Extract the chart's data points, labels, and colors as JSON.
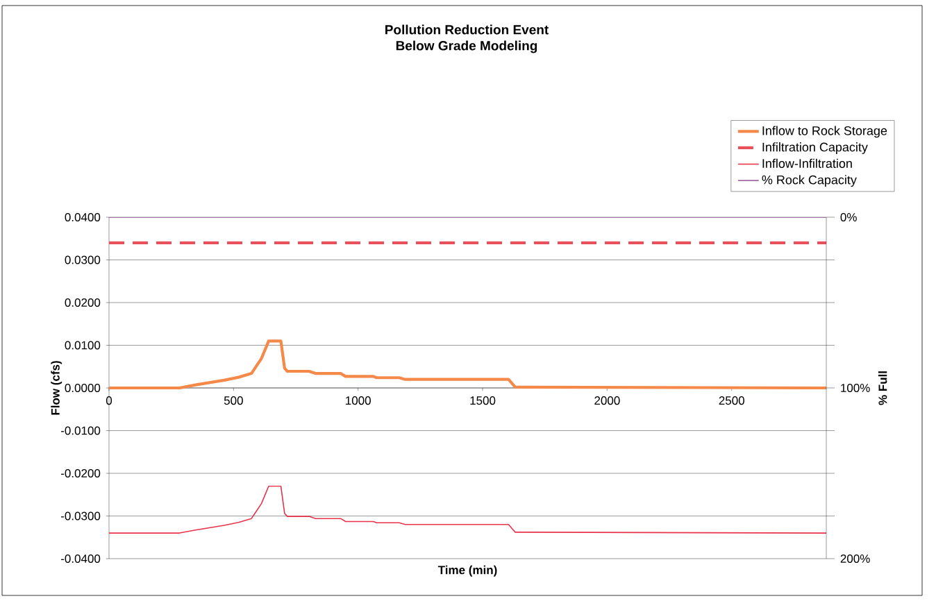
{
  "chart_data": {
    "type": "line",
    "title": "Pollution Reduction Event\nBelow Grade Modeling",
    "xlabel": "Time (min)",
    "ylabel": "Flow (cfs)",
    "y2label": "% Full",
    "xlim": [
      0,
      2880
    ],
    "xticks": [
      0,
      500,
      1000,
      1500,
      2000,
      2500
    ],
    "ylim": [
      -0.04,
      0.04
    ],
    "yticks": [
      {
        "value": -0.04,
        "label": "-0.0400"
      },
      {
        "value": -0.03,
        "label": "-0.0300"
      },
      {
        "value": -0.02,
        "label": "-0.0200"
      },
      {
        "value": -0.01,
        "label": "-0.0100"
      },
      {
        "value": 0,
        "label": "0.0000"
      },
      {
        "value": 0.01,
        "label": "0.0100"
      },
      {
        "value": 0.02,
        "label": "0.0200"
      },
      {
        "value": 0.03,
        "label": "0.0300"
      },
      {
        "value": 0.04,
        "label": "0.0400"
      }
    ],
    "y2lim": [
      200,
      0
    ],
    "y2ticks": [
      {
        "value": 0,
        "label": "0%"
      },
      {
        "value": 25,
        "label": null
      },
      {
        "value": 50,
        "label": null
      },
      {
        "value": 75,
        "label": null
      },
      {
        "value": 100,
        "label": "100%"
      },
      {
        "value": 125,
        "label": null
      },
      {
        "value": 150,
        "label": null
      },
      {
        "value": 175,
        "label": null
      },
      {
        "value": 200,
        "label": "200%"
      }
    ],
    "grid": "y",
    "legend": "top right",
    "marker": "none",
    "series": [
      {
        "name": "Inflow to Rock Storage",
        "color": "#f5894a",
        "line_style": "solid",
        "x": [
          0,
          283,
          347,
          462,
          520,
          572,
          589,
          612,
          641,
          690,
          705,
          716,
          803,
          829,
          930,
          950,
          1062,
          1074,
          1165,
          1189,
          1604,
          1631,
          2880
        ],
        "values": [
          0,
          0,
          0.0007,
          0.0018,
          0.0025,
          0.0034,
          0.0049,
          0.0069,
          0.011,
          0.011,
          0.0046,
          0.0039,
          0.0039,
          0.0034,
          0.0034,
          0.0027,
          0.0027,
          0.0024,
          0.0024,
          0.002,
          0.002,
          0.0002,
          0
        ]
      },
      {
        "name": "Infiltration Capacity",
        "color": "#e8505b",
        "line_style": "dashed",
        "x": [
          0,
          2880
        ],
        "values": [
          0.034,
          0.034
        ]
      },
      {
        "name": "Inflow-Infiltration",
        "color": "#e8334a",
        "line_style": "solid",
        "x": [
          0,
          283,
          347,
          462,
          520,
          572,
          589,
          612,
          641,
          690,
          705,
          716,
          803,
          829,
          930,
          950,
          1062,
          1074,
          1165,
          1189,
          1604,
          1631,
          2880
        ],
        "values": [
          -0.034,
          -0.034,
          -0.0333,
          -0.0322,
          -0.0315,
          -0.0306,
          -0.0291,
          -0.0271,
          -0.023,
          -0.023,
          -0.0294,
          -0.0301,
          -0.0301,
          -0.0306,
          -0.0306,
          -0.0313,
          -0.0313,
          -0.0316,
          -0.0316,
          -0.032,
          -0.032,
          -0.0338,
          -0.034
        ]
      },
      {
        "name": "% Rock Capacity",
        "color": "#9b5a9b",
        "line_style": "solid",
        "axis": "y2",
        "x": [
          0,
          2880
        ],
        "values": [
          0,
          0
        ]
      }
    ]
  }
}
